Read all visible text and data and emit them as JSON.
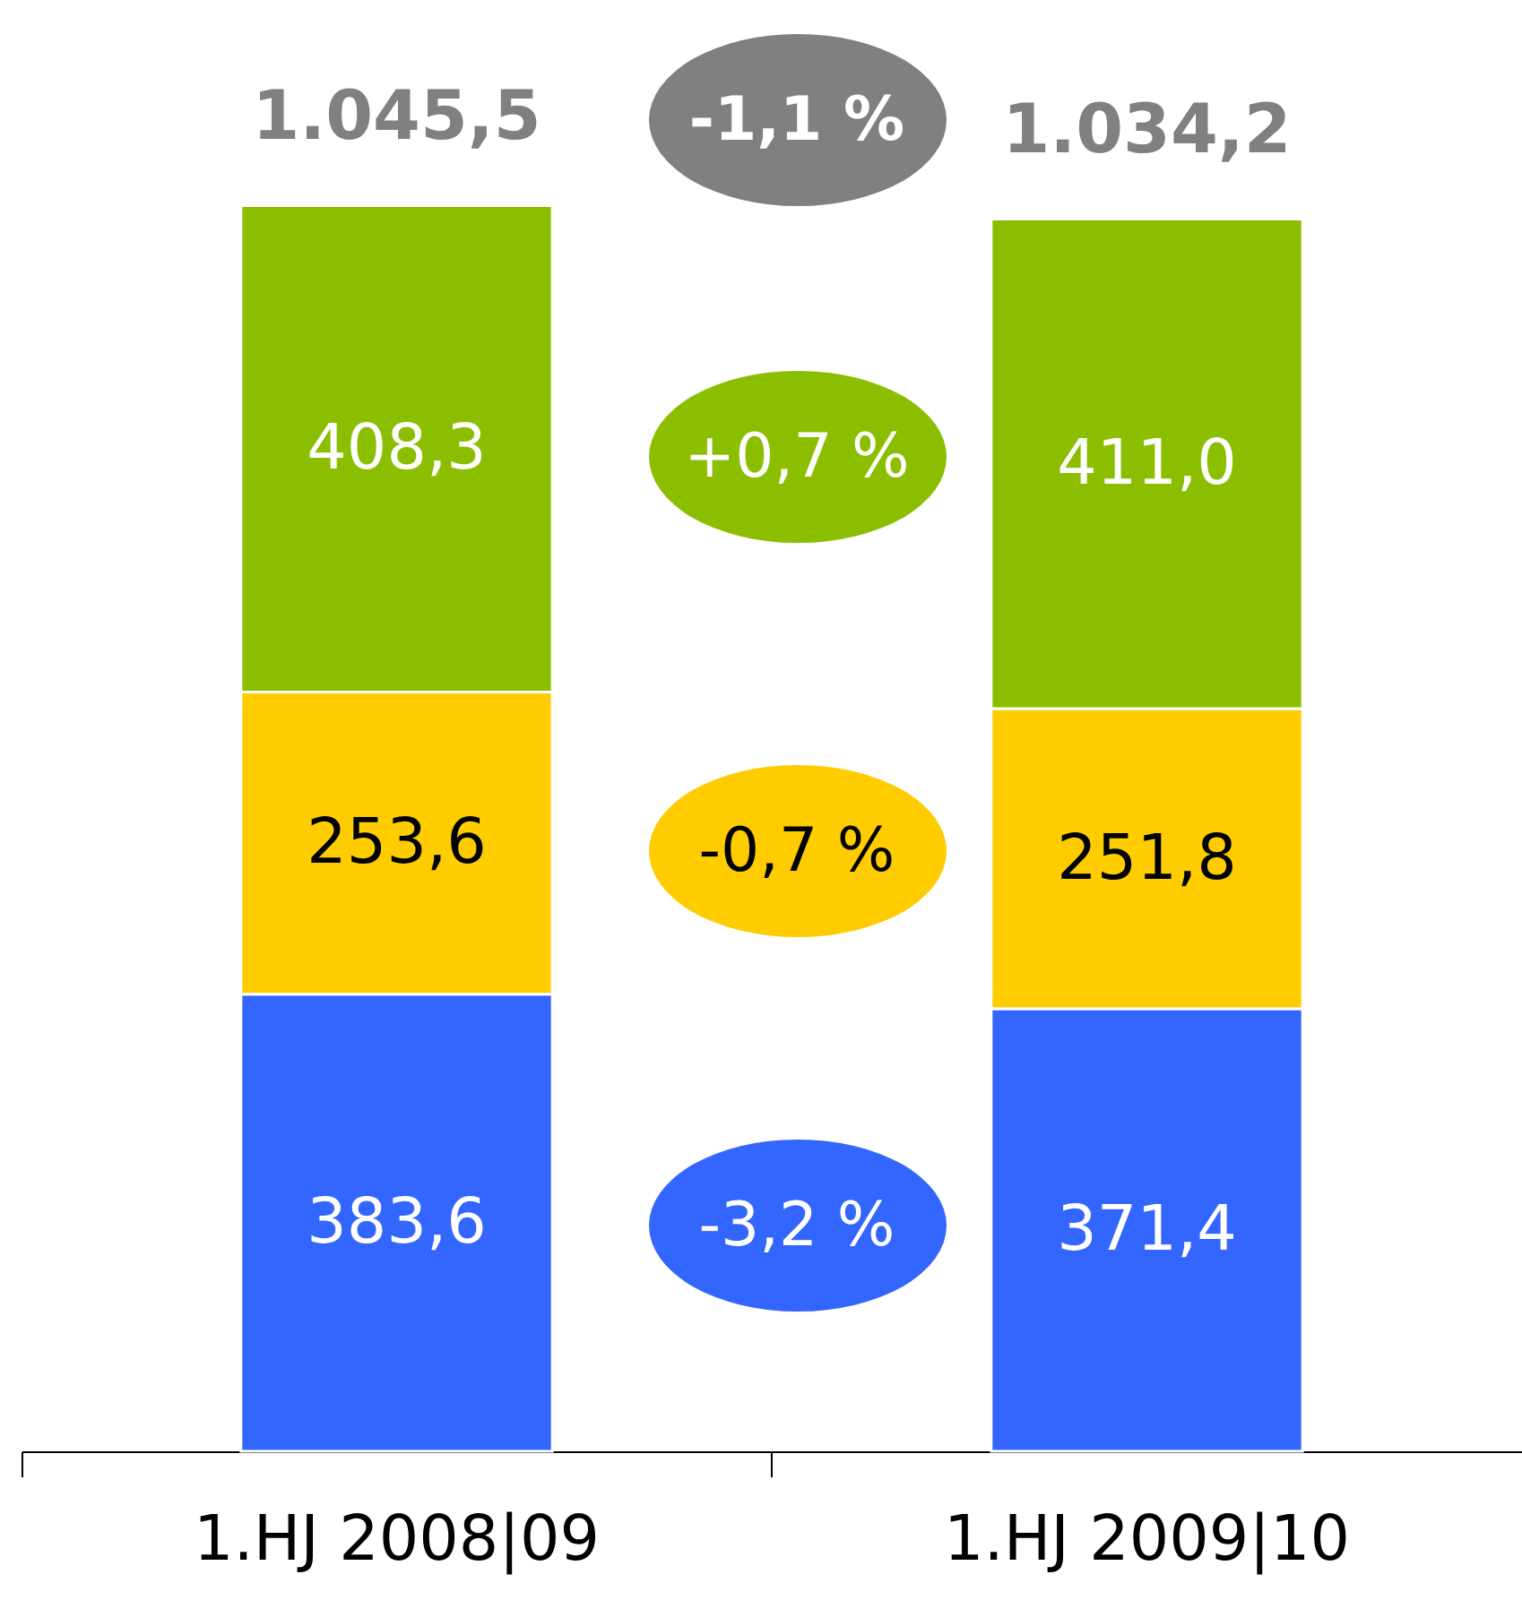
{
  "chart_data": {
    "type": "bar",
    "stacked": true,
    "categories": [
      "1.HJ 2008|09",
      "1.HJ 2009|10"
    ],
    "series": [
      {
        "color": "#3366ff",
        "values": [
          383.6,
          371.4
        ],
        "value_labels": [
          "383,6",
          "371,4"
        ]
      },
      {
        "color": "#ffcc00",
        "values": [
          253.6,
          251.8
        ],
        "value_labels": [
          "253,6",
          "251,8"
        ]
      },
      {
        "color": "#8cbe00",
        "values": [
          408.3,
          411.0
        ],
        "value_labels": [
          "408,3",
          "411,0"
        ]
      }
    ],
    "totals": [
      "1.045,5",
      "1.034,2"
    ],
    "annotations": [
      "-1,1 %",
      "+0,7 %",
      "-0,7 %",
      "-3,2 %"
    ]
  }
}
